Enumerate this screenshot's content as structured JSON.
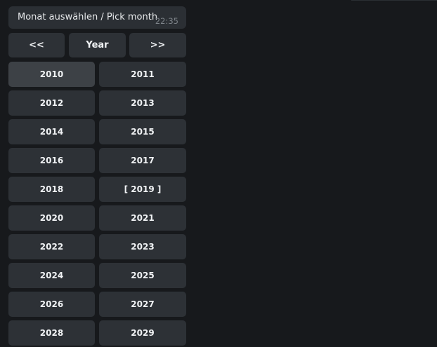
{
  "message": {
    "text": "Monat auswählen / Pick month",
    "time": "22:35"
  },
  "nav": {
    "prev": "<<",
    "title": "Year",
    "next": ">>"
  },
  "years": [
    "2010",
    "2011",
    "2012",
    "2013",
    "2014",
    "2015",
    "2016",
    "2017",
    "2018",
    "[ 2019 ]",
    "2020",
    "2021",
    "2022",
    "2023",
    "2024",
    "2025",
    "2026",
    "2027",
    "2028",
    "2029"
  ],
  "colors": {
    "background": "#17191c",
    "button": "#2d3136",
    "button_hover": "#3d4146"
  }
}
